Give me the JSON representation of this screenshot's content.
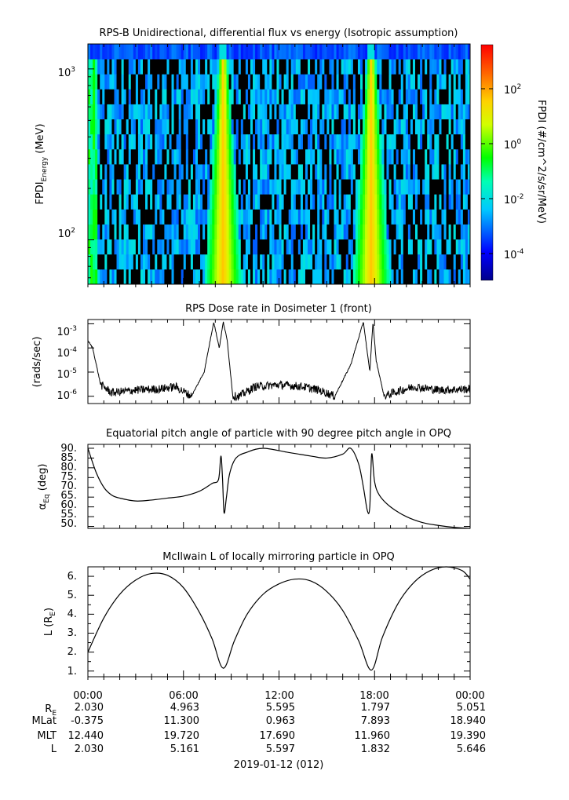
{
  "panels": {
    "spectrogram": {
      "title": "RPS-B  Unidirectional, differential flux vs energy (Isotropic assumption)",
      "ylabel_main": "FPDI",
      "ylabel_sub": "Energy",
      "ylabel_unit": " (MeV)",
      "yticks": [
        {
          "base": "10",
          "exp": "3"
        },
        {
          "base": "10",
          "exp": "2"
        }
      ],
      "colorbar": {
        "label": "FPDI (#/cm^2/s/sr/MeV)",
        "ticks": [
          {
            "base": "10",
            "exp": "2"
          },
          {
            "base": "10",
            "exp": "0"
          },
          {
            "base": "10",
            "exp": "-2"
          },
          {
            "base": "10",
            "exp": "-4"
          }
        ]
      }
    },
    "dose": {
      "title": "RPS  Dose rate in Dosimeter 1 (front)",
      "ylabel": "(rads/sec)",
      "yticks": [
        {
          "base": "10",
          "exp": "-3"
        },
        {
          "base": "10",
          "exp": "-4"
        },
        {
          "base": "10",
          "exp": "-5"
        },
        {
          "base": "10",
          "exp": "-6"
        }
      ]
    },
    "pitch": {
      "title": "Equatorial pitch angle of particle with 90 degree pitch angle in OPQ",
      "ylabel_main": "α",
      "ylabel_sub": "Eq",
      "ylabel_unit": " (deg)",
      "yticks": [
        "90.",
        "85.",
        "80.",
        "75.",
        "70.",
        "65.",
        "60.",
        "55.",
        "50."
      ]
    },
    "lshell": {
      "title": "McIlwain L of locally mirroring particle in OPQ",
      "ylabel_main": "L (R",
      "ylabel_sub": "E",
      "ylabel_end": ")",
      "yticks": [
        "6.",
        "5.",
        "4.",
        "3.",
        "2.",
        "1."
      ]
    }
  },
  "xaxis": {
    "ticks": [
      "00:00",
      "06:00",
      "12:00",
      "18:00",
      "00:00"
    ],
    "date": "2019-01-12 (012)",
    "rows": [
      {
        "label": "R",
        "sub": "E",
        "values": [
          "2.030",
          "4.963",
          "5.595",
          "1.797",
          "5.051"
        ]
      },
      {
        "label": "MLat",
        "sub": "",
        "values": [
          "-0.375",
          "11.300",
          "0.963",
          "7.893",
          "18.940"
        ]
      },
      {
        "label": "MLT",
        "sub": "",
        "values": [
          "12.440",
          "19.720",
          "17.690",
          "11.960",
          "19.390"
        ]
      },
      {
        "label": "L",
        "sub": "",
        "values": [
          "2.030",
          "5.161",
          "5.597",
          "1.832",
          "5.646"
        ]
      }
    ]
  },
  "chart_data": [
    {
      "type": "heatmap",
      "title": "RPS-B  Unidirectional, differential flux vs energy (Isotropic assumption)",
      "xlabel": "",
      "ylabel": "FPDI Energy (MeV)",
      "y_scale": "log",
      "ylim": [
        55,
        1400
      ],
      "x_hours": [
        0,
        24
      ],
      "colorbar_range": [
        1e-05,
        2000
      ],
      "colorbar_scale": "log",
      "colormap": "rainbow (blue-cyan-green-yellow-red)",
      "features": [
        {
          "description": "high-flux tongue centered",
          "center_hour": 8.5,
          "peak_value": 10
        },
        {
          "description": "high-flux tongue centered",
          "center_hour": 17.8,
          "peak_value": 10
        }
      ]
    },
    {
      "type": "line",
      "title": "RPS  Dose rate in Dosimeter 1 (front)",
      "ylabel": "(rads/sec)",
      "y_scale": "log",
      "ylim": [
        5e-07,
        0.0015
      ],
      "x": [
        0,
        0.3,
        0.8,
        1.5,
        3,
        4.5,
        5.5,
        6.5,
        7.3,
        7.9,
        8.25,
        8.5,
        8.75,
        9.1,
        9.5,
        10.5,
        12,
        13.5,
        14.5,
        15.5,
        16.5,
        17.3,
        17.7,
        17.9,
        18.1,
        18.6,
        19.3,
        20.5,
        22,
        24
      ],
      "series": [
        {
          "values": [
            0.0002,
            0.0001,
            3e-06,
            1.4e-06,
            1.8e-06,
            2e-06,
            2.5e-06,
            1e-06,
            1e-05,
            0.0012,
            0.0001,
            0.0012,
            0.0002,
            1e-06,
            1e-06,
            2.5e-06,
            3e-06,
            2.5e-06,
            1.8e-06,
            1e-06,
            2e-05,
            0.0012,
            1e-05,
            0.0012,
            3e-05,
            1e-06,
            1.5e-06,
            2.5e-06,
            1.8e-06,
            2e-06
          ]
        }
      ]
    },
    {
      "type": "line",
      "title": "Equatorial pitch angle of particle with 90 degree pitch angle in OPQ",
      "ylabel": "αEq (deg)",
      "ylim": [
        49,
        92
      ],
      "x": [
        0,
        0.5,
        1,
        1.5,
        2,
        3,
        4,
        5,
        6,
        7,
        7.8,
        8.2,
        8.35,
        8.45,
        8.55,
        8.7,
        8.9,
        9.3,
        10,
        11,
        12.5,
        14,
        15,
        16,
        16.5,
        17,
        17.3,
        17.55,
        17.7,
        17.82,
        18,
        18.3,
        19,
        20,
        21,
        22,
        23,
        24
      ],
      "series": [
        {
          "values": [
            90,
            78,
            70,
            66,
            64.5,
            63,
            63.5,
            64.5,
            65.5,
            68,
            72,
            74,
            86,
            75,
            57,
            65,
            77,
            85,
            88,
            90,
            88,
            86,
            85,
            87,
            90,
            82,
            70,
            58,
            60,
            87,
            73,
            66,
            60,
            55,
            52,
            50.5,
            49.5,
            49
          ]
        }
      ]
    },
    {
      "type": "line",
      "title": "McIlwain L of locally mirroring particle in OPQ",
      "ylabel": "L (RE)",
      "ylim": [
        0.7,
        6.5
      ],
      "x": [
        0,
        1,
        2,
        3,
        4,
        5,
        6,
        7,
        7.8,
        8.5,
        9.2,
        10,
        11,
        12,
        13,
        14,
        15,
        16,
        17,
        17.8,
        18.5,
        19.5,
        20.5,
        21.5,
        22.5,
        23.5,
        24
      ],
      "series": [
        {
          "values": [
            2.0,
            3.8,
            5.05,
            5.8,
            6.15,
            6.05,
            5.4,
            4.1,
            2.7,
            1.15,
            2.6,
            4.0,
            5.05,
            5.6,
            5.85,
            5.75,
            5.2,
            4.2,
            2.6,
            1.05,
            2.8,
            4.6,
            5.7,
            6.3,
            6.5,
            6.3,
            5.85
          ]
        }
      ]
    }
  ]
}
